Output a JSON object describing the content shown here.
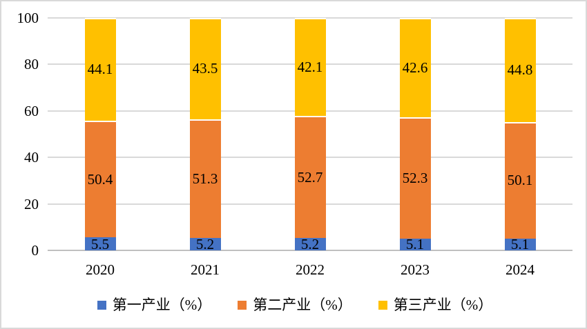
{
  "chart_data": {
    "type": "bar",
    "stacked": true,
    "title": "",
    "xlabel": "",
    "ylabel": "",
    "categories": [
      "2020",
      "2021",
      "2022",
      "2023",
      "2024"
    ],
    "series": [
      {
        "name": "第一产业（%）",
        "color": "#4472C4",
        "values": [
          5.5,
          5.2,
          5.2,
          5.1,
          5.1
        ]
      },
      {
        "name": "第二产业（%）",
        "color": "#ED7D31",
        "values": [
          50.4,
          51.3,
          52.7,
          52.3,
          50.1
        ]
      },
      {
        "name": "第三产业（%）",
        "color": "#FFC000",
        "values": [
          44.1,
          43.5,
          42.1,
          42.6,
          44.8
        ]
      }
    ],
    "ylim": [
      0,
      100
    ],
    "yticks": [
      0,
      20,
      40,
      60,
      80,
      100
    ],
    "grid": true,
    "legend_position": "bottom"
  },
  "styles": {
    "background": "#FFFFFF",
    "frame_border": "#D9D9D9",
    "gridline_color": "#D9D9D9",
    "axis_color": "#BFBFBF",
    "text_color": "#000000"
  }
}
